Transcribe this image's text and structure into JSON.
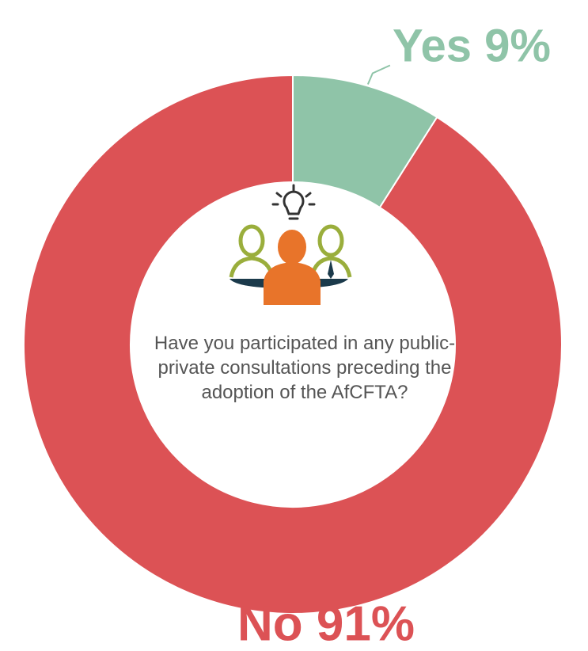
{
  "chart_data": {
    "type": "donut",
    "categories": [
      "Yes",
      "No"
    ],
    "values": [
      9,
      91
    ],
    "value_labels": [
      "Yes 9%",
      "No 91%"
    ],
    "colors": [
      "#8fc4a8",
      "#dc5255"
    ],
    "center_text": "Have you participated in any public-private consultations preceding the adoption of the AfCFTA?"
  }
}
